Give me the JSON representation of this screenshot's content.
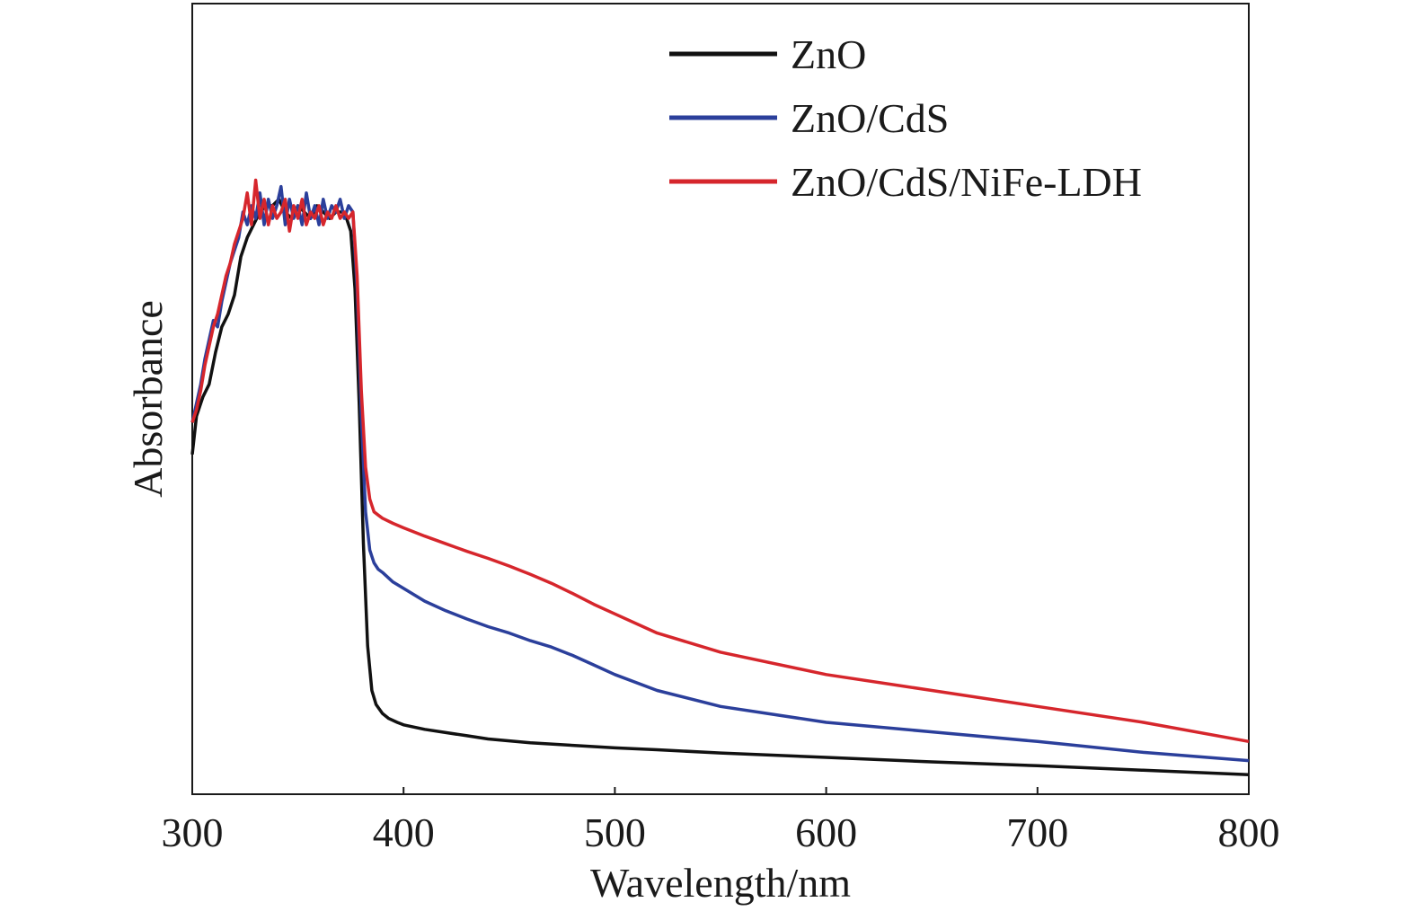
{
  "chart_data": {
    "type": "line",
    "xlabel": "Wavelength/nm",
    "ylabel": "Absorbance",
    "xlim": [
      300,
      800
    ],
    "ylim": [
      0,
      1.0
    ],
    "xticks": [
      300,
      400,
      500,
      600,
      700,
      800
    ],
    "xtick_labels": [
      "300",
      "400",
      "500",
      "600",
      "700",
      "800"
    ],
    "yticks_shown": false,
    "grid": false,
    "legend_position": "top-right",
    "series": [
      {
        "name": "ZnO",
        "color": "#111111",
        "x": [
          300,
          302,
          305,
          308,
          311,
          314,
          317,
          320,
          323,
          326,
          329,
          332,
          335,
          338,
          341,
          344,
          347,
          350,
          353,
          356,
          359,
          362,
          365,
          368,
          371,
          373,
          375,
          377,
          379,
          381,
          383,
          385,
          387,
          390,
          393,
          397,
          400,
          410,
          420,
          430,
          440,
          450,
          460,
          480,
          500,
          520,
          550,
          600,
          650,
          700,
          750,
          800
        ],
        "y": [
          0.52,
          0.58,
          0.61,
          0.63,
          0.68,
          0.72,
          0.74,
          0.77,
          0.83,
          0.86,
          0.88,
          0.9,
          0.91,
          0.91,
          0.92,
          0.9,
          0.89,
          0.91,
          0.9,
          0.89,
          0.91,
          0.9,
          0.89,
          0.9,
          0.9,
          0.89,
          0.87,
          0.78,
          0.6,
          0.38,
          0.22,
          0.15,
          0.128,
          0.114,
          0.106,
          0.1,
          0.096,
          0.089,
          0.084,
          0.079,
          0.074,
          0.071,
          0.068,
          0.064,
          0.06,
          0.057,
          0.052,
          0.045,
          0.038,
          0.032,
          0.025,
          0.018
        ]
      },
      {
        "name": "ZnO/CdS",
        "color": "#2b3f9b",
        "x": [
          300,
          302,
          304,
          306,
          308,
          310,
          312,
          314,
          316,
          318,
          320,
          322,
          324,
          326,
          328,
          330,
          332,
          334,
          336,
          338,
          340,
          342,
          344,
          346,
          348,
          350,
          352,
          354,
          356,
          358,
          360,
          362,
          364,
          366,
          368,
          370,
          372,
          374,
          376,
          378,
          380,
          382,
          384,
          386,
          388,
          390,
          395,
          400,
          410,
          420,
          430,
          440,
          450,
          460,
          470,
          480,
          490,
          500,
          520,
          550,
          600,
          650,
          700,
          750,
          800
        ],
        "y": [
          0.57,
          0.6,
          0.63,
          0.67,
          0.7,
          0.73,
          0.72,
          0.76,
          0.79,
          0.82,
          0.84,
          0.86,
          0.9,
          0.88,
          0.91,
          0.89,
          0.93,
          0.88,
          0.92,
          0.89,
          0.91,
          0.94,
          0.88,
          0.92,
          0.89,
          0.91,
          0.88,
          0.93,
          0.89,
          0.91,
          0.88,
          0.92,
          0.89,
          0.91,
          0.9,
          0.92,
          0.89,
          0.91,
          0.9,
          0.78,
          0.58,
          0.43,
          0.37,
          0.35,
          0.34,
          0.335,
          0.32,
          0.31,
          0.29,
          0.275,
          0.262,
          0.25,
          0.24,
          0.228,
          0.218,
          0.205,
          0.19,
          0.175,
          0.15,
          0.125,
          0.1,
          0.085,
          0.07,
          0.053,
          0.04
        ]
      },
      {
        "name": "ZnO/CdS/NiFe-LDH",
        "color": "#d6262c",
        "x": [
          300,
          302,
          304,
          306,
          308,
          310,
          312,
          314,
          316,
          318,
          320,
          322,
          324,
          326,
          328,
          330,
          332,
          334,
          336,
          338,
          340,
          342,
          344,
          346,
          348,
          350,
          352,
          354,
          356,
          358,
          360,
          362,
          364,
          366,
          368,
          370,
          372,
          374,
          376,
          378,
          380,
          382,
          384,
          386,
          388,
          390,
          395,
          400,
          410,
          420,
          430,
          440,
          450,
          460,
          470,
          480,
          490,
          500,
          520,
          550,
          600,
          650,
          700,
          750,
          800
        ],
        "y": [
          0.57,
          0.59,
          0.62,
          0.66,
          0.69,
          0.72,
          0.74,
          0.77,
          0.8,
          0.82,
          0.85,
          0.87,
          0.89,
          0.93,
          0.88,
          0.95,
          0.89,
          0.92,
          0.88,
          0.91,
          0.89,
          0.9,
          0.92,
          0.87,
          0.91,
          0.89,
          0.92,
          0.88,
          0.9,
          0.89,
          0.91,
          0.88,
          0.9,
          0.89,
          0.91,
          0.89,
          0.9,
          0.89,
          0.9,
          0.8,
          0.62,
          0.5,
          0.45,
          0.43,
          0.425,
          0.42,
          0.412,
          0.405,
          0.392,
          0.38,
          0.368,
          0.357,
          0.345,
          0.332,
          0.318,
          0.302,
          0.285,
          0.27,
          0.24,
          0.21,
          0.175,
          0.15,
          0.125,
          0.1,
          0.07
        ]
      }
    ]
  }
}
